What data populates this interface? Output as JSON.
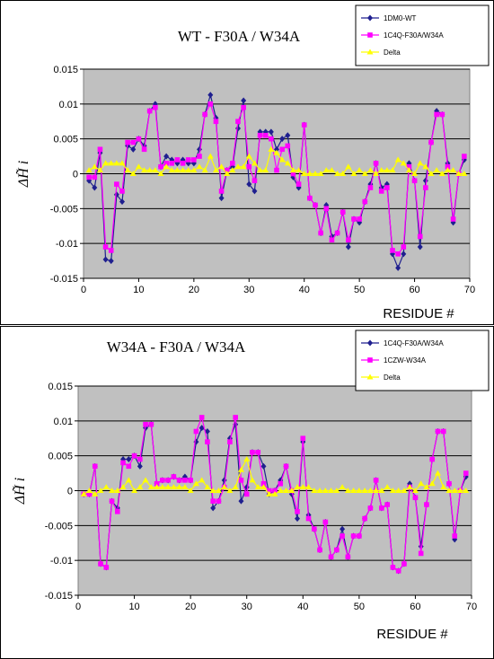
{
  "chart_data": [
    {
      "type": "line",
      "title": "WT  - F30A / W34A",
      "xlabel": "RESIDUE #",
      "ylabel": "ΔH̃ i",
      "xlim": [
        0,
        70
      ],
      "ylim": [
        -0.015,
        0.015
      ],
      "x_ticks": [
        "0",
        "10",
        "20",
        "30",
        "40",
        "50",
        "60",
        "70"
      ],
      "y_ticks": [
        "0.015",
        "0.01",
        "0.005",
        "0",
        "-0.005",
        "-0.01",
        "-0.015"
      ],
      "grid": "horizontal",
      "legend": "top-right",
      "series": [
        {
          "name": "1DM0-WT",
          "color": "#1f1f8f",
          "marker": "diamond",
          "x": [
            1,
            2,
            3,
            4,
            5,
            6,
            7,
            8,
            9,
            10,
            11,
            12,
            13,
            14,
            15,
            16,
            17,
            18,
            19,
            20,
            21,
            22,
            23,
            24,
            25,
            26,
            27,
            28,
            29,
            30,
            31,
            32,
            33,
            34,
            35,
            36,
            37,
            38,
            39,
            40,
            41,
            42,
            43,
            44,
            45,
            46,
            47,
            48,
            49,
            50,
            51,
            52,
            53,
            54,
            55,
            56,
            57,
            58,
            59,
            60,
            61,
            62,
            63,
            64,
            65,
            66,
            67,
            68,
            69
          ],
          "values": [
            -0.001,
            -0.002,
            0.003,
            -0.0123,
            -0.0125,
            -0.003,
            -0.004,
            0.004,
            0.0035,
            0.005,
            0.004,
            0.009,
            0.01,
            0.001,
            0.0025,
            0.002,
            0.0015,
            0.002,
            0.0015,
            0.0015,
            0.0035,
            0.0085,
            0.0113,
            0.008,
            -0.0035,
            0.0005,
            0.001,
            0.0065,
            0.0105,
            -0.0015,
            -0.0025,
            0.006,
            0.006,
            0.006,
            0.0035,
            0.005,
            0.0055,
            -0.0005,
            -0.002,
            0.007,
            -0.0035,
            -0.0045,
            -0.0085,
            -0.0045,
            -0.009,
            -0.0085,
            -0.0055,
            -0.0105,
            -0.0065,
            -0.007,
            -0.004,
            -0.0015,
            0.0015,
            -0.002,
            -0.0015,
            -0.0115,
            -0.0135,
            -0.0115,
            0.0015,
            -0.001,
            -0.0105,
            -0.001,
            0.0045,
            0.009,
            0.0085,
            0.0015,
            -0.007,
            0.0,
            0.002
          ]
        },
        {
          "name": "1C4Q-F30A/W34A",
          "color": "#ff00ff",
          "marker": "square",
          "x": [
            1,
            2,
            3,
            4,
            5,
            6,
            7,
            8,
            9,
            10,
            11,
            12,
            13,
            14,
            15,
            16,
            17,
            18,
            19,
            20,
            21,
            22,
            23,
            24,
            25,
            26,
            27,
            28,
            29,
            30,
            31,
            32,
            33,
            34,
            35,
            36,
            37,
            38,
            39,
            40,
            41,
            42,
            43,
            44,
            45,
            46,
            47,
            48,
            49,
            50,
            51,
            52,
            53,
            54,
            55,
            56,
            57,
            58,
            59,
            60,
            61,
            62,
            63,
            64,
            65,
            66,
            67,
            68,
            69
          ],
          "values": [
            -0.0005,
            -0.0005,
            0.0035,
            -0.0105,
            -0.011,
            -0.0015,
            -0.0025,
            0.0045,
            0.0045,
            0.005,
            0.0035,
            0.009,
            0.0095,
            0.001,
            0.0015,
            0.0015,
            0.002,
            0.0015,
            0.002,
            0.002,
            0.0025,
            0.0085,
            0.01,
            0.0075,
            -0.0025,
            0.0005,
            0.0015,
            0.0075,
            0.0095,
            0.001,
            -0.001,
            0.0055,
            0.0055,
            0.005,
            0.0005,
            0.0035,
            0.004,
            0.0,
            -0.0015,
            0.007,
            -0.0035,
            -0.0045,
            -0.0085,
            -0.005,
            -0.0095,
            -0.0085,
            -0.0055,
            -0.0095,
            -0.0065,
            -0.0065,
            -0.004,
            -0.002,
            0.0015,
            -0.0025,
            -0.002,
            -0.011,
            -0.0115,
            -0.0105,
            0.001,
            -0.001,
            -0.009,
            -0.002,
            0.0045,
            0.0085,
            0.0085,
            0.001,
            -0.0065,
            0.0,
            0.0025
          ]
        },
        {
          "name": "Delta",
          "color": "#ffff00",
          "marker": "triangle",
          "x": [
            1,
            2,
            3,
            4,
            5,
            6,
            7,
            8,
            9,
            10,
            11,
            12,
            13,
            14,
            15,
            16,
            17,
            18,
            19,
            20,
            21,
            22,
            23,
            24,
            25,
            26,
            27,
            28,
            29,
            30,
            31,
            32,
            33,
            34,
            35,
            36,
            37,
            38,
            39,
            40,
            41,
            42,
            43,
            44,
            45,
            46,
            47,
            48,
            49,
            50,
            51,
            52,
            53,
            54,
            55,
            56,
            57,
            58,
            59,
            60,
            61,
            62,
            63,
            64,
            65,
            66,
            67,
            68,
            69
          ],
          "values": [
            0.0005,
            0.001,
            0.0005,
            0.0015,
            0.0015,
            0.0015,
            0.0015,
            0.0005,
            0.0,
            0.001,
            0.0005,
            0.0005,
            0.0005,
            0.0,
            0.001,
            0.0005,
            0.0005,
            0.0005,
            0.0005,
            0.0005,
            0.001,
            0.0005,
            0.0025,
            0.0005,
            0.001,
            0.0,
            0.0005,
            0.001,
            0.001,
            0.0025,
            0.0015,
            0.0005,
            0.0005,
            0.0035,
            0.003,
            0.002,
            0.0015,
            0.0005,
            0.0005,
            0.0,
            0.0,
            0.0,
            0.0,
            0.0005,
            0.0005,
            0.0,
            0.0,
            0.001,
            0.0,
            0.0005,
            0.0,
            0.0005,
            0.0,
            0.0005,
            0.0005,
            0.0005,
            0.002,
            0.0015,
            0.0005,
            0.0,
            0.0015,
            0.001,
            0.0,
            0.0005,
            0.0,
            0.0005,
            0.0005,
            0.0,
            0.0
          ]
        }
      ]
    },
    {
      "type": "line",
      "title": "W34A  - F30A / W34A",
      "xlabel": "RESIDUE #",
      "ylabel": "ΔH̃ i",
      "xlim": [
        0,
        70
      ],
      "ylim": [
        -0.015,
        0.015
      ],
      "x_ticks": [
        "0",
        "10",
        "20",
        "30",
        "40",
        "50",
        "60",
        "70"
      ],
      "y_ticks": [
        "0.015",
        "0.01",
        "0.005",
        "0",
        "-0.005",
        "-0.01",
        "-0.015"
      ],
      "grid": "horizontal",
      "legend": "top-right",
      "series": [
        {
          "name": "1C4Q-F30A/W34A",
          "color": "#1f1f8f",
          "marker": "diamond",
          "x": [
            1,
            2,
            3,
            4,
            5,
            6,
            7,
            8,
            9,
            10,
            11,
            12,
            13,
            14,
            15,
            16,
            17,
            18,
            19,
            20,
            21,
            22,
            23,
            24,
            25,
            26,
            27,
            28,
            29,
            30,
            31,
            32,
            33,
            34,
            35,
            36,
            37,
            38,
            39,
            40,
            41,
            42,
            43,
            44,
            45,
            46,
            47,
            48,
            49,
            50,
            51,
            52,
            53,
            54,
            55,
            56,
            57,
            58,
            59,
            60,
            61,
            62,
            63,
            64,
            65,
            66,
            67,
            68,
            69
          ],
          "values": [
            -0.0005,
            -0.0005,
            0.0035,
            -0.0105,
            -0.011,
            -0.0015,
            -0.0025,
            0.0045,
            0.0045,
            0.005,
            0.0035,
            0.009,
            0.0095,
            0.001,
            0.0015,
            0.0015,
            0.002,
            0.0015,
            0.002,
            0.0015,
            0.007,
            0.009,
            0.0085,
            -0.0025,
            -0.0015,
            0.0015,
            0.0075,
            0.0095,
            -0.0015,
            0.0005,
            0.0055,
            0.0055,
            0.0035,
            -0.0005,
            0.0,
            0.0015,
            0.0035,
            -0.0005,
            -0.004,
            0.007,
            -0.0035,
            -0.0055,
            -0.0085,
            -0.0045,
            -0.0095,
            -0.0085,
            -0.0055,
            -0.0095,
            -0.0065,
            -0.0065,
            -0.004,
            -0.0025,
            0.0015,
            -0.0025,
            -0.002,
            -0.011,
            -0.0115,
            -0.0105,
            0.001,
            -0.001,
            -0.008,
            -0.002,
            0.0045,
            0.0085,
            0.0085,
            0.001,
            -0.007,
            0.0,
            0.002
          ]
        },
        {
          "name": "1CZW-W34A",
          "color": "#ff00ff",
          "marker": "square",
          "x": [
            1,
            2,
            3,
            4,
            5,
            6,
            7,
            8,
            9,
            10,
            11,
            12,
            13,
            14,
            15,
            16,
            17,
            18,
            19,
            20,
            21,
            22,
            23,
            24,
            25,
            26,
            27,
            28,
            29,
            30,
            31,
            32,
            33,
            34,
            35,
            36,
            37,
            38,
            39,
            40,
            41,
            42,
            43,
            44,
            45,
            46,
            47,
            48,
            49,
            50,
            51,
            52,
            53,
            54,
            55,
            56,
            57,
            58,
            59,
            60,
            61,
            62,
            63,
            64,
            65,
            66,
            67,
            68,
            69
          ],
          "values": [
            -0.0005,
            -0.0005,
            0.0035,
            -0.0105,
            -0.011,
            -0.0015,
            -0.003,
            0.004,
            0.0035,
            0.005,
            0.0045,
            0.0095,
            0.0095,
            0.001,
            0.0015,
            0.0015,
            0.002,
            0.0015,
            0.0015,
            0.0015,
            0.0085,
            0.0105,
            0.007,
            -0.0015,
            -0.0015,
            0.0005,
            0.007,
            0.0105,
            0.0015,
            -0.0005,
            0.0055,
            0.0055,
            0.001,
            0.0,
            0.0,
            0.001,
            0.0035,
            0.0,
            -0.003,
            0.0075,
            -0.004,
            -0.0055,
            -0.0085,
            -0.0045,
            -0.0095,
            -0.0085,
            -0.0065,
            -0.0095,
            -0.0065,
            -0.0065,
            -0.004,
            -0.0025,
            0.0015,
            -0.0025,
            -0.002,
            -0.011,
            -0.0115,
            -0.0105,
            0.0005,
            -0.001,
            -0.009,
            -0.002,
            0.0045,
            0.0085,
            0.0085,
            0.001,
            -0.0065,
            0.0,
            0.0025
          ]
        },
        {
          "name": "Delta",
          "color": "#ffff00",
          "marker": "triangle",
          "x": [
            1,
            2,
            3,
            4,
            5,
            6,
            7,
            8,
            9,
            10,
            11,
            12,
            13,
            14,
            15,
            16,
            17,
            18,
            19,
            20,
            21,
            22,
            23,
            24,
            25,
            26,
            27,
            28,
            29,
            30,
            31,
            32,
            33,
            34,
            35,
            36,
            37,
            38,
            39,
            40,
            41,
            42,
            43,
            44,
            45,
            46,
            47,
            48,
            49,
            50,
            51,
            52,
            53,
            54,
            55,
            56,
            57,
            58,
            59,
            60,
            61,
            62,
            63,
            64,
            65,
            66,
            67,
            68,
            69
          ],
          "values": [
            -0.0005,
            0.0,
            -0.0005,
            0.0,
            0.0005,
            0.0,
            0.0,
            0.0005,
            0.0015,
            0.0,
            0.0005,
            0.0015,
            0.0005,
            0.0005,
            0.0005,
            0.0005,
            0.0005,
            0.0005,
            0.0005,
            0.0,
            0.001,
            0.0015,
            0.0005,
            0.0,
            0.0,
            0.0005,
            0.0,
            0.0005,
            0.003,
            0.0045,
            0.0015,
            0.0005,
            0.0005,
            -0.0005,
            -0.0005,
            0.0,
            0.0,
            0.0,
            0.0005,
            0.0005,
            0.0005,
            0.0,
            0.0,
            0.0,
            0.0,
            0.0,
            0.0005,
            0.0,
            0.0,
            0.0,
            0.0,
            0.0,
            0.0,
            0.0,
            0.0005,
            0.0,
            0.0,
            0.0,
            0.0005,
            0.0,
            0.001,
            0.0005,
            0.001,
            0.0025,
            0.0005,
            0.0,
            0.0,
            0.0,
            0.0
          ]
        }
      ]
    }
  ]
}
